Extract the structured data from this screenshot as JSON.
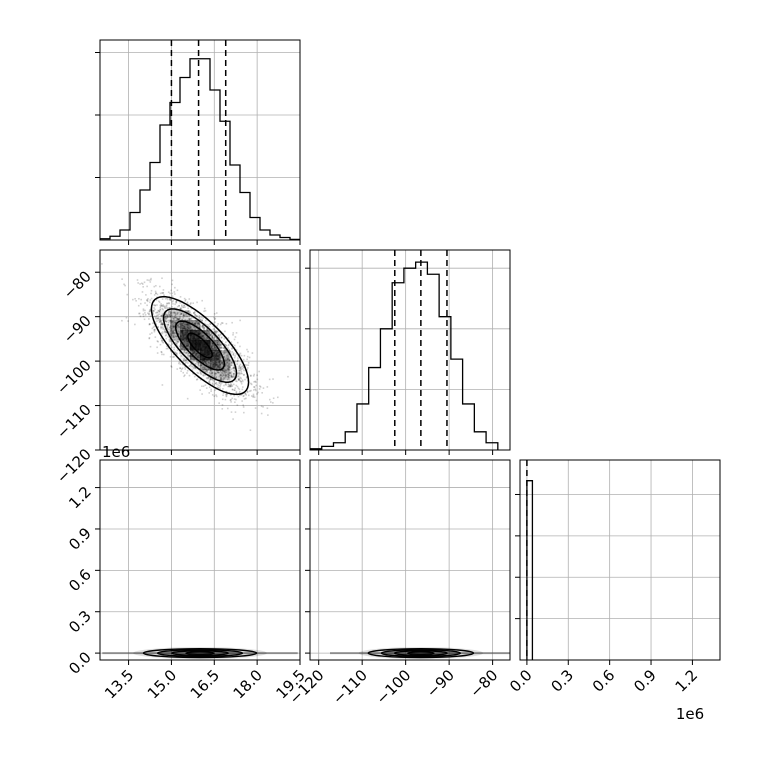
{
  "chart_data": {
    "type": "corner",
    "grid": true,
    "panels": [
      {
        "id": "hist-a",
        "type": "histogram",
        "bin_edges": [
          12.5,
          12.85,
          13.2,
          13.55,
          13.9,
          14.25,
          14.6,
          14.95,
          15.3,
          15.65,
          16.0,
          16.35,
          16.7,
          17.05,
          17.4,
          17.75,
          18.1,
          18.45,
          18.8,
          19.15,
          19.5
        ],
        "counts": [
          0.01,
          0.03,
          0.08,
          0.22,
          0.4,
          0.62,
          0.92,
          1.1,
          1.3,
          1.45,
          1.45,
          1.2,
          0.95,
          0.6,
          0.38,
          0.18,
          0.08,
          0.04,
          0.02,
          0.005
        ],
        "quantiles": [
          15.0,
          15.95,
          16.9
        ],
        "xlim": [
          12.5,
          19.5
        ]
      },
      {
        "id": "scatter-ab",
        "type": "2d-density",
        "xlim": [
          12.5,
          19.5
        ],
        "ylim": [
          -120,
          -75
        ],
        "mean": [
          16.0,
          -96.5
        ],
        "sd": [
          0.85,
          5.5
        ],
        "correlation": -0.75,
        "contour_levels_sigma": [
          0.5,
          1.0,
          1.5,
          2.0
        ],
        "yticks": [
          -80,
          -90,
          -100,
          -110,
          -120
        ]
      },
      {
        "id": "hist-b",
        "type": "histogram",
        "bin_edges": [
          -122,
          -119.3,
          -116.6,
          -113.9,
          -111.2,
          -108.5,
          -105.8,
          -103.1,
          -100.4,
          -97.7,
          -95.0,
          -92.3,
          -89.6,
          -86.9,
          -84.2,
          -81.5,
          -78.8
        ],
        "counts": [
          0.01,
          0.03,
          0.06,
          0.15,
          0.38,
          0.68,
          1.0,
          1.38,
          1.5,
          1.55,
          1.45,
          1.1,
          0.75,
          0.38,
          0.15,
          0.06
        ],
        "quantiles": [
          -102.5,
          -96.5,
          -90.5
        ],
        "xlim": [
          -122,
          -76
        ]
      },
      {
        "id": "scatter-ac",
        "type": "2d-density",
        "xlim": [
          12.5,
          19.5
        ],
        "ylim": [
          -50000,
          1400000
        ],
        "center": [
          16.0,
          0
        ],
        "spread_x": 0.9,
        "xticks": [
          13.5,
          15.0,
          16.5,
          18.0,
          19.5
        ],
        "yticks": [
          0.0,
          0.3,
          0.6,
          0.9,
          1.2
        ]
      },
      {
        "id": "scatter-bc",
        "type": "2d-density",
        "xlim": [
          -122,
          -76
        ],
        "ylim": [
          -50000,
          1400000
        ],
        "center": [
          -96.5,
          0
        ],
        "spread_x": 5.5,
        "xticks": [
          -120,
          -110,
          -100,
          -90,
          -80
        ]
      },
      {
        "id": "hist-c",
        "type": "histogram",
        "bin_edges": [
          0,
          40000
        ],
        "counts": [
          1.3
        ],
        "quantiles": [
          0
        ],
        "xlim": [
          -50000,
          1400000
        ],
        "xticks": [
          0.0,
          0.3,
          0.6,
          0.9,
          1.2
        ]
      }
    ],
    "tick_text": {
      "a_y": [
        "−80",
        "−90",
        "−100",
        "−110",
        "−120"
      ],
      "c_y": [
        "1.2",
        "0.9",
        "0.6",
        "0.3",
        "0.0"
      ],
      "a_x": [
        "13.5",
        "15.0",
        "16.5",
        "18.0",
        "19.5"
      ],
      "b_x": [
        "−120",
        "−110",
        "−100",
        "−90",
        "−80"
      ],
      "c_x": [
        "0.0",
        "0.3",
        "0.6",
        "0.9",
        "1.2"
      ]
    },
    "offset_labels": {
      "c_y": "1e6",
      "c_x": "1e6"
    }
  }
}
